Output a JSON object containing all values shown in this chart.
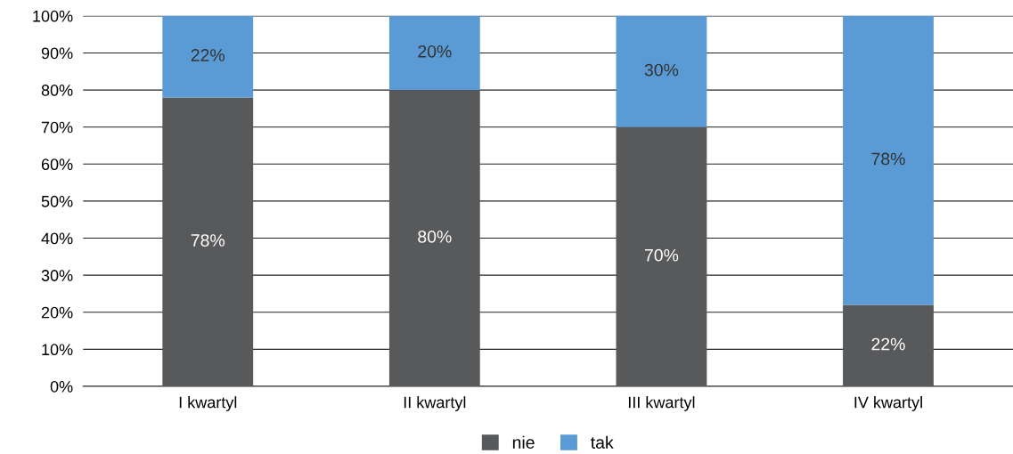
{
  "chart_data": {
    "type": "bar",
    "stacked": true,
    "categories": [
      "I kwartyl",
      "II kwartyl",
      "III kwartyl",
      "IV kwartyl"
    ],
    "series": [
      {
        "name": "nie",
        "color": "#58595b",
        "values": [
          78,
          80,
          70,
          22
        ],
        "value_labels": [
          "78%",
          "80%",
          "70%",
          "22%"
        ]
      },
      {
        "name": "tak",
        "color": "#5b9bd5",
        "values": [
          22,
          20,
          30,
          78
        ],
        "value_labels": [
          "22%",
          "20%",
          "30%",
          "78%"
        ]
      }
    ],
    "ylim": [
      0,
      100
    ],
    "yticks": [
      {
        "value": 0,
        "label": "0%"
      },
      {
        "value": 10,
        "label": "10%"
      },
      {
        "value": 20,
        "label": "20%"
      },
      {
        "value": 30,
        "label": "30%"
      },
      {
        "value": 40,
        "label": "40%"
      },
      {
        "value": 50,
        "label": "50%"
      },
      {
        "value": 60,
        "label": "60%"
      },
      {
        "value": 70,
        "label": "70%"
      },
      {
        "value": 80,
        "label": "80%"
      },
      {
        "value": 90,
        "label": "90%"
      },
      {
        "value": 100,
        "label": "100%"
      }
    ],
    "grid": "y",
    "legend": "bottom"
  }
}
